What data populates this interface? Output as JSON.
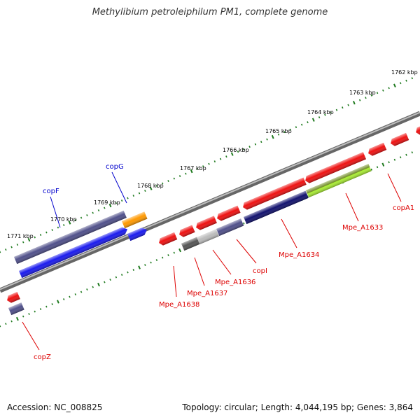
{
  "title": "Methylibium petroleiphilum PM1, complete genome",
  "footer": {
    "accession": "Accession: NC_008825",
    "topology": "Topology: circular; Length: 4,044,195 bp; Genes: 3,864"
  },
  "colors": {
    "backbone": "#8a8a8a",
    "tick": "#1f7a1f",
    "red": "#ee1111",
    "blue": "#1a1aee",
    "navy": "#11116e",
    "slate": "#50508a",
    "orange": "#ff9900",
    "lime": "#aaee33",
    "olive": "#6e8a22",
    "gray_dark": "#555555",
    "gray_light": "#bbbbbb",
    "label_red": "#dd0000",
    "label_blue": "#0000cc"
  },
  "scale_labels": [
    "1762 kbp",
    "1763 kbp",
    "1764 kbp",
    "1765 kbp",
    "1766 kbp",
    "1767 kbp",
    "1768 kbp",
    "1769 kbp",
    "1770 kbp",
    "1771 kbp"
  ],
  "gene_labels": [
    {
      "text": "copG",
      "color": "label_blue"
    },
    {
      "text": "copF",
      "color": "label_blue"
    },
    {
      "text": "copA1",
      "color": "label_red"
    },
    {
      "text": "Mpe_A1633",
      "color": "label_red"
    },
    {
      "text": "Mpe_A1634",
      "color": "label_red"
    },
    {
      "text": "copI",
      "color": "label_red"
    },
    {
      "text": "Mpe_A1636",
      "color": "label_red"
    },
    {
      "text": "Mpe_A1637",
      "color": "label_red"
    },
    {
      "text": "Mpe_A1638",
      "color": "label_red"
    },
    {
      "text": "copZ",
      "color": "label_red"
    }
  ]
}
